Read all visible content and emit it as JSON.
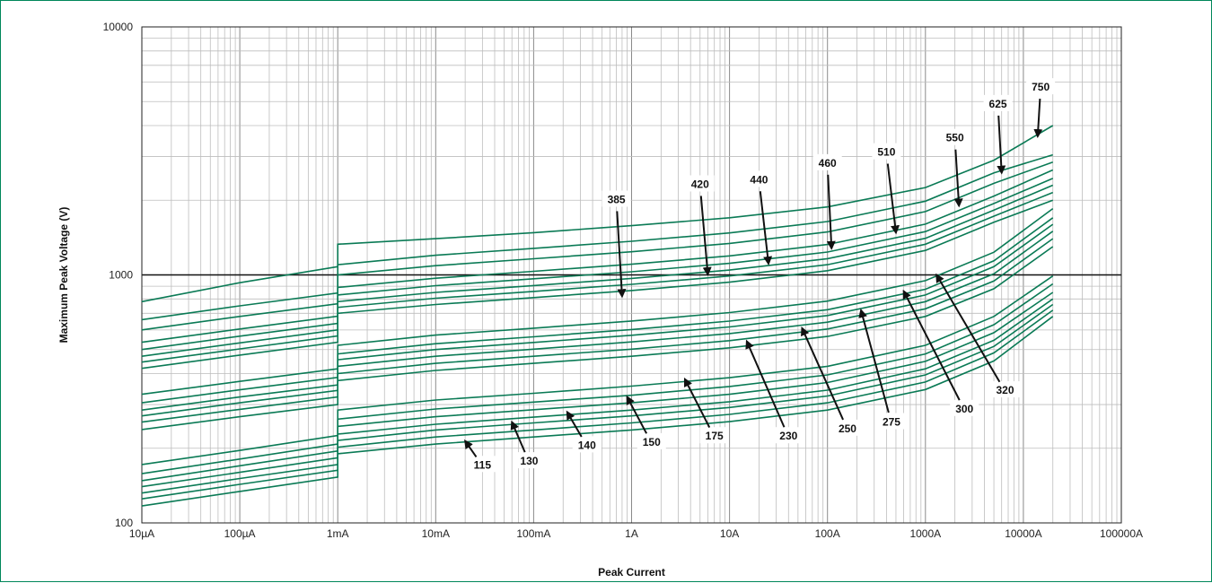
{
  "chart_data": {
    "type": "line",
    "xlabel": "Peak Current",
    "ylabel": "Maximum Peak Voltage (V)",
    "x_scale": "log",
    "y_scale": "log",
    "xlim": [
      "10µA",
      "100000A"
    ],
    "ylim": [
      100,
      10000
    ],
    "x_tick_labels": [
      "10µA",
      "100µA",
      "1mA",
      "10mA",
      "100mA",
      "1A",
      "10A",
      "100A",
      "1000A",
      "10000A",
      "100000A"
    ],
    "y_tick_labels": [
      "100",
      "1000",
      "10000"
    ],
    "grid": true,
    "line_color": "#0a7a55",
    "series": [
      {
        "name": "115",
        "x": [
          "10µA",
          "100µA",
          "1mA",
          "1mA",
          "10mA",
          "100mA",
          "1A",
          "10A",
          "100A",
          "1000A",
          "5000A",
          "20000A"
        ],
        "y": [
          117,
          134,
          153,
          190,
          208,
          222,
          237,
          256,
          285,
          345,
          450,
          680
        ]
      },
      {
        "name": "130",
        "x": [
          "10µA",
          "100µA",
          "1mA",
          "1mA",
          "10mA",
          "100mA",
          "1A",
          "10A",
          "100A",
          "1000A",
          "5000A",
          "20000A"
        ],
        "y": [
          125,
          143,
          163,
          202,
          222,
          237,
          253,
          274,
          305,
          370,
          485,
          720
        ]
      },
      {
        "name": "140",
        "x": [
          "10µA",
          "100µA",
          "1mA",
          "1mA",
          "10mA",
          "100mA",
          "1A",
          "10A",
          "100A",
          "1000A",
          "5000A",
          "20000A"
        ],
        "y": [
          132,
          151,
          172,
          215,
          237,
          253,
          270,
          292,
          325,
          395,
          515,
          760
        ]
      },
      {
        "name": "150",
        "x": [
          "10µA",
          "100µA",
          "1mA",
          "1mA",
          "10mA",
          "100mA",
          "1A",
          "10A",
          "100A",
          "1000A",
          "5000A",
          "20000A"
        ],
        "y": [
          140,
          160,
          183,
          228,
          250,
          267,
          285,
          308,
          343,
          418,
          545,
          800
        ]
      },
      {
        "name": "175",
        "x": [
          "10µA",
          "100µA",
          "1mA",
          "1mA",
          "10mA",
          "100mA",
          "1A",
          "10A",
          "100A",
          "1000A",
          "5000A",
          "20000A"
        ],
        "y": [
          148,
          170,
          195,
          245,
          268,
          286,
          305,
          330,
          368,
          448,
          585,
          850
        ]
      },
      {
        "name": "230",
        "x": [
          "10µA",
          "100µA",
          "1mA",
          "1mA",
          "10mA",
          "100mA",
          "1A",
          "10A",
          "100A",
          "1000A",
          "5000A",
          "20000A"
        ],
        "y": [
          158,
          181,
          208,
          262,
          288,
          307,
          327,
          355,
          395,
          480,
          630,
          920
        ]
      },
      {
        "name": "250",
        "x": [
          "10µA",
          "100µA",
          "1mA",
          "1mA",
          "10mA",
          "100mA",
          "1A",
          "10A",
          "100A",
          "1000A",
          "5000A",
          "20000A"
        ],
        "y": [
          172,
          196,
          225,
          285,
          313,
          333,
          356,
          385,
          428,
          520,
          680,
          990
        ]
      },
      {
        "name": "275",
        "x": [
          "10µA",
          "100µA",
          "1mA",
          "1mA",
          "10mA",
          "100mA",
          "1A",
          "10A",
          "100A",
          "1000A",
          "5000A",
          "20000A"
        ],
        "y": [
          238,
          268,
          300,
          375,
          412,
          440,
          470,
          508,
          565,
          680,
          880,
          1300
        ]
      },
      {
        "name": "300",
        "x": [
          "10µA",
          "100µA",
          "1mA",
          "1mA",
          "10mA",
          "100mA",
          "1A",
          "10A",
          "100A",
          "1000A",
          "5000A",
          "20000A"
        ],
        "y": [
          255,
          287,
          322,
          400,
          440,
          470,
          502,
          543,
          605,
          730,
          945,
          1400
        ]
      },
      {
        "name": "320",
        "x": [
          "10µA",
          "100µA",
          "1mA",
          "1mA",
          "10mA",
          "100mA",
          "1A",
          "10A",
          "100A",
          "1000A",
          "5000A",
          "20000A"
        ],
        "y": [
          270,
          305,
          342,
          428,
          470,
          502,
          537,
          580,
          645,
          780,
          1010,
          1500
        ]
      },
      {
        "name": "385",
        "x": [
          "10µA",
          "100µA",
          "1mA",
          "1mA",
          "10mA",
          "100mA",
          "1A",
          "10A",
          "100A",
          "1000A",
          "5000A",
          "20000A"
        ],
        "y": [
          285,
          322,
          360,
          455,
          500,
          534,
          571,
          617,
          686,
          830,
          1080,
          1600
        ]
      },
      {
        "name": "420",
        "x": [
          "10µA",
          "100µA",
          "1mA",
          "1mA",
          "10mA",
          "100mA",
          "1A",
          "10A",
          "100A",
          "1000A",
          "5000A",
          "20000A"
        ],
        "y": [
          305,
          344,
          386,
          480,
          528,
          563,
          602,
          651,
          724,
          875,
          1140,
          1700
        ]
      },
      {
        "name": "440",
        "x": [
          "10µA",
          "100µA",
          "1mA",
          "1mA",
          "10mA",
          "100mA",
          "1A",
          "10A",
          "100A",
          "1000A",
          "5000A",
          "20000A"
        ],
        "y": [
          330,
          372,
          418,
          520,
          572,
          610,
          652,
          705,
          784,
          948,
          1235,
          1850
        ]
      },
      {
        "name": "460",
        "x": [
          "10µA",
          "100µA",
          "1mA",
          "1mA",
          "10mA",
          "100mA",
          "1A",
          "10A",
          "100A",
          "1000A",
          "5000A",
          "20000A"
        ],
        "y": [
          420,
          475,
          535,
          700,
          760,
          810,
          865,
          935,
          1040,
          1255,
          1630,
          2000
        ]
      },
      {
        "name": "510",
        "x": [
          "10µA",
          "100µA",
          "1mA",
          "1mA",
          "10mA",
          "100mA",
          "1A",
          "10A",
          "100A",
          "1000A",
          "5000A",
          "20000A"
        ],
        "y": [
          445,
          503,
          567,
          740,
          805,
          858,
          916,
          990,
          1100,
          1330,
          1725,
          2150
        ]
      },
      {
        "name": "550",
        "x": [
          "10µA",
          "100µA",
          "1mA",
          "1mA",
          "10mA",
          "100mA",
          "1A",
          "10A",
          "100A",
          "1000A",
          "5000A",
          "20000A"
        ],
        "y": [
          470,
          532,
          600,
          780,
          850,
          906,
          968,
          1046,
          1163,
          1405,
          1825,
          2300
        ]
      },
      {
        "name": "625",
        "x": [
          "10µA",
          "100µA",
          "1mA",
          "1mA",
          "10mA",
          "100mA",
          "1A",
          "10A",
          "100A",
          "1000A",
          "5000A",
          "20000A"
        ],
        "y": [
          500,
          566,
          638,
          830,
          905,
          965,
          1030,
          1113,
          1237,
          1495,
          1940,
          2450
        ]
      },
      {
        "name": "750",
        "x": [
          "10µA",
          "100µA",
          "1mA",
          "1mA",
          "10mA",
          "100mA",
          "1A",
          "10A",
          "100A",
          "1000A",
          "5000A",
          "20000A"
        ],
        "y": [
          535,
          605,
          682,
          890,
          970,
          1034,
          1104,
          1193,
          1326,
          1602,
          2080,
          2650
        ]
      },
      {
        "name": "",
        "x": [
          "10µA",
          "100µA",
          "1mA",
          "1mA",
          "10mA",
          "100mA",
          "1A",
          "10A",
          "100A",
          "1000A",
          "5000A",
          "20000A"
        ],
        "y": [
          600,
          680,
          765,
          1000,
          1090,
          1162,
          1240,
          1340,
          1490,
          1800,
          2340,
          2850
        ]
      },
      {
        "name": "",
        "x": [
          "10µA",
          "100µA",
          "1mA",
          "1mA",
          "10mA",
          "100mA",
          "1A",
          "10A",
          "100A",
          "1000A",
          "5000A",
          "20000A"
        ],
        "y": [
          660,
          750,
          845,
          1100,
          1200,
          1280,
          1366,
          1476,
          1641,
          1983,
          2580,
          3050
        ]
      },
      {
        "name": "",
        "x": [
          "10µA",
          "100µA",
          "1mA",
          "1mA",
          "10mA",
          "100mA",
          "1A",
          "10A",
          "100A",
          "1000A",
          "5000A",
          "20000A"
        ],
        "y": [
          780,
          930,
          1080,
          1330,
          1400,
          1480,
          1580,
          1700,
          1880,
          2250,
          2900,
          4000
        ]
      }
    ]
  },
  "annotations": [
    {
      "label": "115",
      "text_x": "30mA",
      "text_y": 170,
      "tip_x": "20mA",
      "tip_y": 214
    },
    {
      "label": "130",
      "text_x": "90mA",
      "text_y": 176,
      "tip_x": "60mA",
      "tip_y": 255
    },
    {
      "label": "140",
      "text_x": "350mA",
      "text_y": 204,
      "tip_x": "220mA",
      "tip_y": 280
    },
    {
      "label": "150",
      "text_x": "1.6A",
      "text_y": 210,
      "tip_x": "900mA",
      "tip_y": 322
    },
    {
      "label": "175",
      "text_x": "7A",
      "text_y": 222,
      "tip_x": "3.5A",
      "tip_y": 380
    },
    {
      "label": "230",
      "text_x": "40A",
      "text_y": 222,
      "tip_x": "15A",
      "tip_y": 540
    },
    {
      "label": "250",
      "text_x": "160A",
      "text_y": 238,
      "tip_x": "55A",
      "tip_y": 610
    },
    {
      "label": "275",
      "text_x": "450A",
      "text_y": 253,
      "tip_x": "220A",
      "tip_y": 720
    },
    {
      "label": "300",
      "text_x": "2500A",
      "text_y": 286,
      "tip_x": "600A",
      "tip_y": 860
    },
    {
      "label": "320",
      "text_x": "6500A",
      "text_y": 340,
      "tip_x": "1300A",
      "tip_y": 1000
    },
    {
      "label": "385",
      "text_x": "700mA",
      "text_y": 1996,
      "tip_x": "800mA",
      "tip_y": 820
    },
    {
      "label": "420",
      "text_x": "5A",
      "text_y": 2300,
      "tip_x": "6A",
      "tip_y": 1005
    },
    {
      "label": "440",
      "text_x": "20A",
      "text_y": 2400,
      "tip_x": "25A",
      "tip_y": 1110
    },
    {
      "label": "460",
      "text_x": "100A",
      "text_y": 2800,
      "tip_x": "110A",
      "tip_y": 1280
    },
    {
      "label": "510",
      "text_x": "400A",
      "text_y": 3100,
      "tip_x": "500A",
      "tip_y": 1480
    },
    {
      "label": "550",
      "text_x": "2000A",
      "text_y": 3540,
      "tip_x": "2200A",
      "tip_y": 1900
    },
    {
      "label": "625",
      "text_x": "5500A",
      "text_y": 4850,
      "tip_x": "6000A",
      "tip_y": 2580
    },
    {
      "label": "750",
      "text_x": "15000A",
      "text_y": 5670,
      "tip_x": "14000A",
      "tip_y": 3620
    }
  ]
}
